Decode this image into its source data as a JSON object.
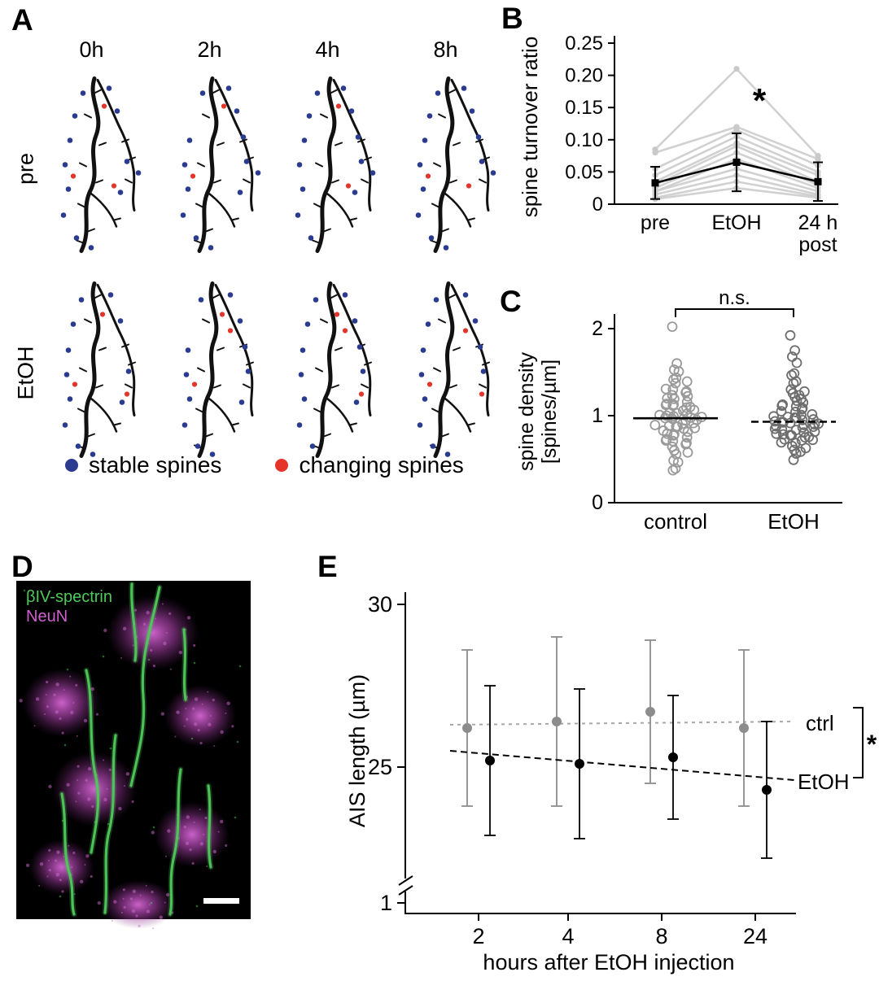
{
  "panels": {
    "a": {
      "label": "A",
      "timepoints": [
        "0h",
        "2h",
        "4h",
        "8h"
      ],
      "row_labels": [
        "pre",
        "EtOH"
      ],
      "legend": [
        {
          "label": "stable spines",
          "color": "#2a3b90"
        },
        {
          "label": "changing spines",
          "color": "#e5352b"
        }
      ]
    },
    "b": {
      "label": "B"
    },
    "c": {
      "label": "C"
    },
    "d": {
      "label": "D",
      "stains": [
        {
          "label": "βIV-spectrin",
          "color": "#4ec95a"
        },
        {
          "label": "NeuN",
          "color": "#cf5fcf"
        }
      ]
    },
    "e": {
      "label": "E"
    }
  },
  "chart_data": [
    {
      "id": "spine_turnover_ratio",
      "type": "line",
      "ylabel": "spine turnover ratio",
      "categories": [
        "pre",
        "EtOH",
        "24 h post"
      ],
      "category_lines": [
        [
          "pre"
        ],
        [
          "EtOH"
        ],
        [
          "24 h",
          "post"
        ]
      ],
      "ylim": [
        0,
        0.25
      ],
      "yticks": [
        0,
        0.05,
        0.1,
        0.15,
        0.2,
        0.25
      ],
      "ytick_labels": [
        "0",
        "0.05",
        "0.10",
        "0.15",
        "0.20",
        "0.25"
      ],
      "individual_color": "#c9c9c9",
      "mean_color": "#000000",
      "individual_series": [
        [
          0.085,
          0.21,
          0.075
        ],
        [
          0.08,
          0.12,
          0.07
        ],
        [
          0.055,
          0.115,
          0.06
        ],
        [
          0.045,
          0.105,
          0.05
        ],
        [
          0.035,
          0.095,
          0.045
        ],
        [
          0.03,
          0.09,
          0.035
        ],
        [
          0.025,
          0.08,
          0.03
        ],
        [
          0.02,
          0.07,
          0.025
        ],
        [
          0.02,
          0.055,
          0.02
        ],
        [
          0.015,
          0.045,
          0.015
        ],
        [
          0.01,
          0.035,
          0.012
        ],
        [
          0.008,
          0.025,
          0.01
        ]
      ],
      "mean": [
        0.033,
        0.065,
        0.035
      ],
      "error": [
        0.025,
        0.045,
        0.03
      ],
      "annotation": "*"
    },
    {
      "id": "spine_density",
      "type": "scatter",
      "ylabel_lines": [
        "spine density",
        "[spines/µm]"
      ],
      "ylim": [
        0,
        2.15
      ],
      "yticks": [
        0,
        1,
        2
      ],
      "ytick_labels": [
        "0",
        "1",
        "2"
      ],
      "significance": "n.s.",
      "groups": [
        {
          "label": "control",
          "color": "#9a9a9a",
          "mean": 0.97,
          "mean_style": "solid",
          "values": [
            2.0,
            1.6,
            1.55,
            1.5,
            1.45,
            1.4,
            1.4,
            1.35,
            1.3,
            1.3,
            1.3,
            1.25,
            1.25,
            1.2,
            1.2,
            1.2,
            1.15,
            1.15,
            1.15,
            1.1,
            1.1,
            1.1,
            1.1,
            1.05,
            1.05,
            1.05,
            1.05,
            1.0,
            1.0,
            1.0,
            1.0,
            1.0,
            1.0,
            0.95,
            0.95,
            0.95,
            0.95,
            0.9,
            0.9,
            0.9,
            0.9,
            0.9,
            0.85,
            0.85,
            0.85,
            0.85,
            0.8,
            0.8,
            0.8,
            0.75,
            0.75,
            0.75,
            0.7,
            0.7,
            0.7,
            0.65,
            0.65,
            0.6,
            0.6,
            0.55,
            0.5,
            0.45,
            0.4,
            0.35
          ]
        },
        {
          "label": "EtOH",
          "color": "#6e6e6e",
          "mean": 0.93,
          "mean_style": "dashed",
          "values": [
            1.9,
            1.75,
            1.7,
            1.6,
            1.5,
            1.45,
            1.4,
            1.35,
            1.3,
            1.3,
            1.25,
            1.25,
            1.2,
            1.2,
            1.15,
            1.15,
            1.15,
            1.1,
            1.1,
            1.1,
            1.05,
            1.05,
            1.05,
            1.0,
            1.0,
            1.0,
            1.0,
            1.0,
            0.95,
            0.95,
            0.95,
            0.95,
            0.95,
            0.9,
            0.9,
            0.9,
            0.9,
            0.9,
            0.9,
            0.85,
            0.85,
            0.85,
            0.85,
            0.85,
            0.8,
            0.8,
            0.8,
            0.8,
            0.8,
            0.75,
            0.75,
            0.75,
            0.75,
            0.7,
            0.7,
            0.7,
            0.7,
            0.65,
            0.65,
            0.6,
            0.6,
            0.55,
            0.5
          ]
        }
      ]
    },
    {
      "id": "ais_length",
      "type": "scatter",
      "ylabel": "AIS length (µm)",
      "xlabel": "hours after EtOH injection",
      "x_tick_labels": [
        "2",
        "4",
        "8",
        "24"
      ],
      "ytick_labels": [
        "30",
        "25"
      ],
      "yticks": [
        30,
        25
      ],
      "break_label": "1",
      "significance": "*",
      "series": [
        {
          "name": "ctrl",
          "color": "#8c8c8c",
          "trend_color": "#a8a8a8",
          "means": [
            26.2,
            26.4,
            26.7,
            26.2
          ],
          "errors": [
            2.4,
            2.6,
            2.2,
            2.4
          ],
          "trend": [
            26.3,
            26.4
          ]
        },
        {
          "name": "EtOH",
          "color": "#000000",
          "trend_color": "#000000",
          "means": [
            25.2,
            25.1,
            25.3,
            24.3
          ],
          "errors": [
            2.3,
            2.3,
            1.9,
            2.1
          ],
          "trend": [
            25.5,
            24.6
          ]
        }
      ]
    }
  ]
}
